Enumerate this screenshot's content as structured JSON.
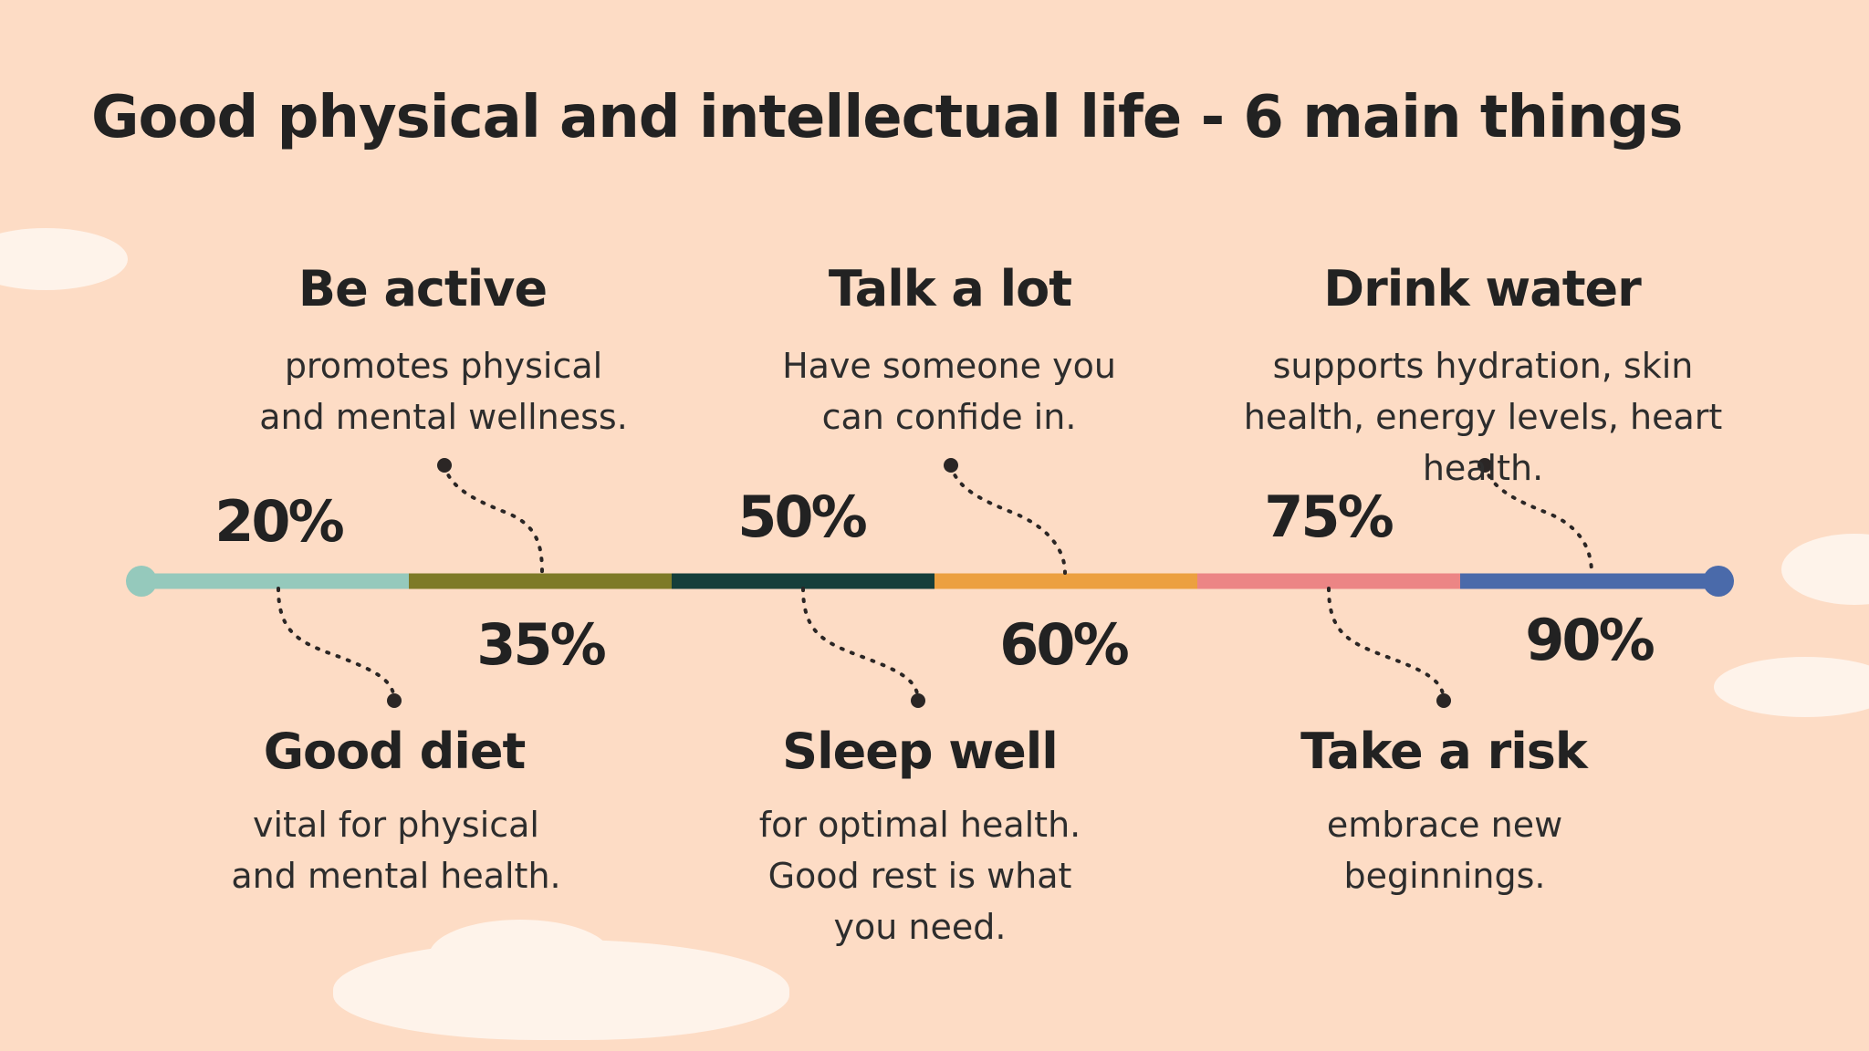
{
  "title": "Good physical and intellectual life - 6 main things",
  "timeline": {
    "segment_colors": [
      "#95C9BC",
      "#7E7A27",
      "#153E3A",
      "#ECA040",
      "#EC8585",
      "#4A6AAA"
    ],
    "start_dot_color": "#95C9BC",
    "end_dot_color": "#4A6AAA"
  },
  "items": [
    {
      "percent": "20%",
      "heading": "Good diet",
      "lines": [
        "vital for physical",
        "and mental health."
      ]
    },
    {
      "percent": "35%",
      "heading": "Be active",
      "lines": [
        "promotes physical",
        "and mental wellness."
      ]
    },
    {
      "percent": "50%",
      "heading": "Sleep well",
      "lines": [
        "for optimal health.",
        "Good rest is what",
        "you need."
      ]
    },
    {
      "percent": "60%",
      "heading": "Talk a lot",
      "lines": [
        "Have someone you",
        "can confide in."
      ]
    },
    {
      "percent": "75%",
      "heading": "Take a risk",
      "lines": [
        "embrace new",
        "beginnings."
      ]
    },
    {
      "percent": "90%",
      "heading": "Drink water",
      "lines": [
        "supports hydration, skin",
        "health, energy levels, heart",
        "health."
      ]
    }
  ]
}
